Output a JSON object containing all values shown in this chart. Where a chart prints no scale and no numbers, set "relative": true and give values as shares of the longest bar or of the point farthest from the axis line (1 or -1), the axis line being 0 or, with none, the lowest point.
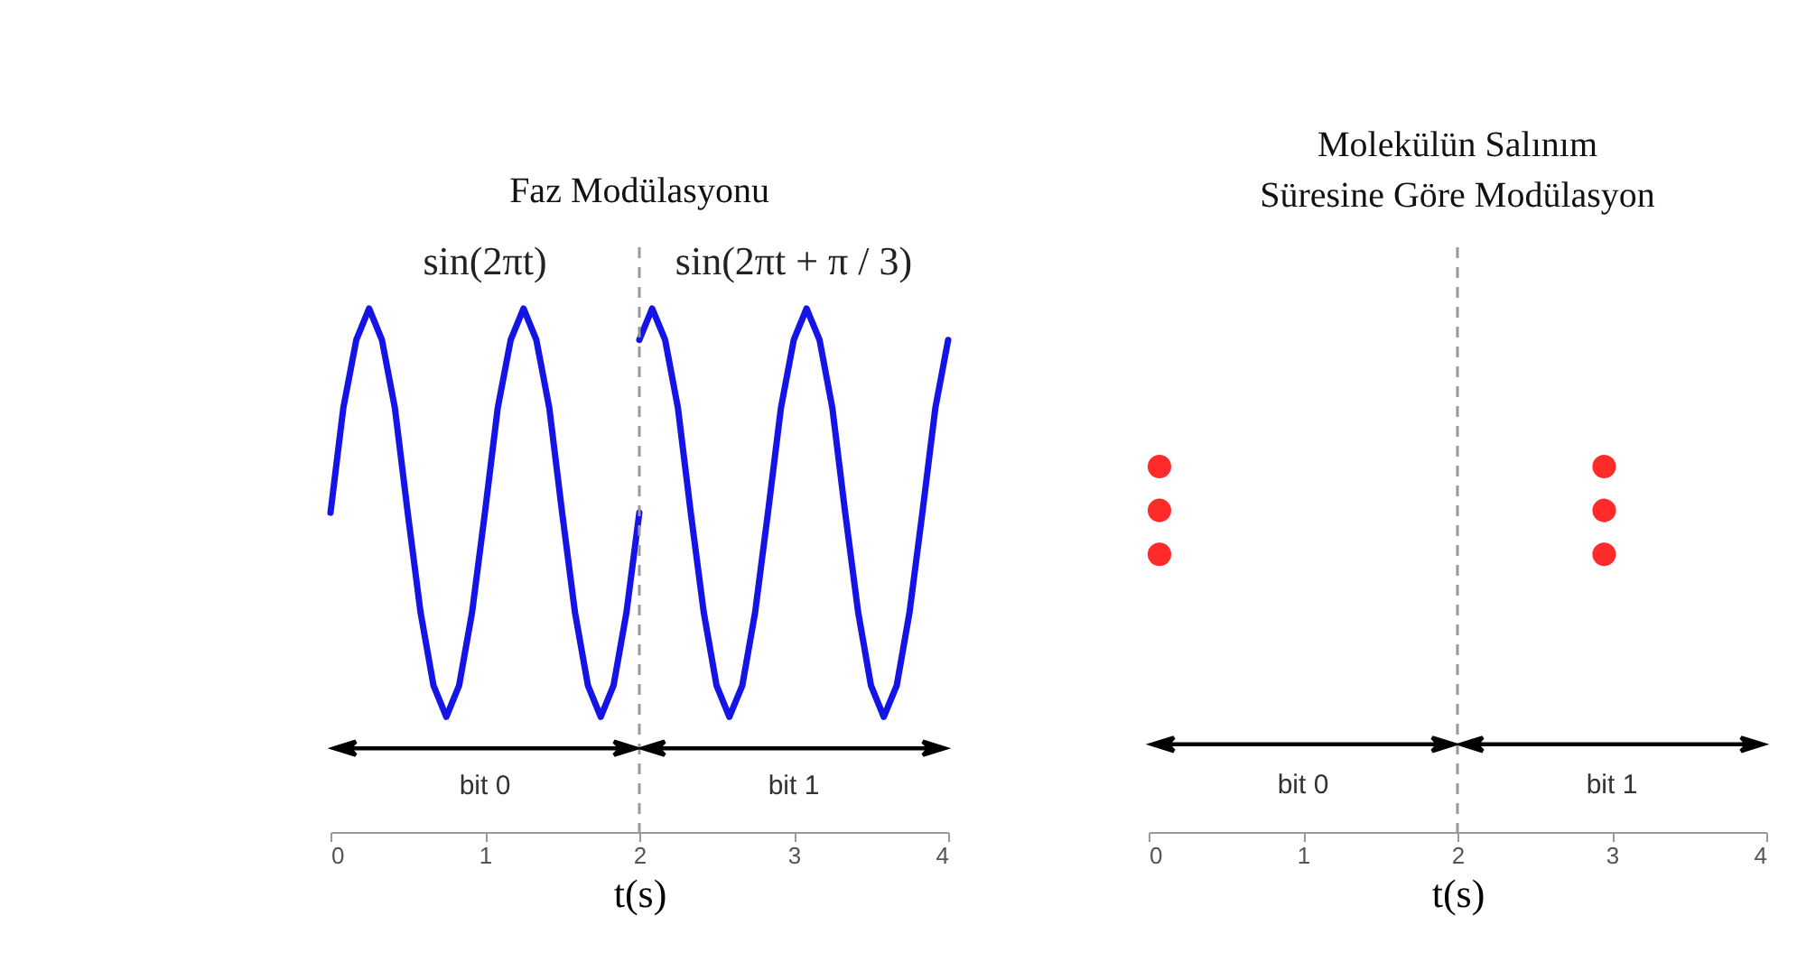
{
  "chart_data": [
    {
      "type": "line",
      "title": "Faz Modülasyonu",
      "xlabel": "t(s)",
      "xlim": [
        0,
        4
      ],
      "xticks": [
        0,
        1,
        2,
        3,
        4
      ],
      "relative": true,
      "tick_labels": "x",
      "line_style": "solid",
      "marker": "none",
      "series": [
        {
          "color": "#1414e6",
          "x": [
            0,
            0.083,
            0.167,
            0.25,
            0.333,
            0.417,
            0.5,
            0.583,
            0.667,
            0.75,
            0.833,
            0.917,
            1,
            1.083,
            1.167,
            1.25,
            1.333,
            1.417,
            1.5,
            1.583,
            1.667,
            1.75,
            1.833,
            1.917,
            2
          ],
          "values": [
            0.61,
            0.81,
            0.94,
            1,
            0.94,
            0.81,
            0.61,
            0.42,
            0.28,
            0.22,
            0.28,
            0.42,
            0.61,
            0.81,
            0.94,
            1,
            0.94,
            0.81,
            0.61,
            0.42,
            0.28,
            0.22,
            0.28,
            0.42,
            0.61
          ]
        },
        {
          "color": "#1414e6",
          "x": [
            2,
            2.083,
            2.167,
            2.25,
            2.333,
            2.417,
            2.5,
            2.583,
            2.667,
            2.75,
            2.833,
            2.917,
            3,
            3.083,
            3.167,
            3.25,
            3.333,
            3.417,
            3.5,
            3.583,
            3.667,
            3.75,
            3.833,
            3.917,
            4
          ],
          "values": [
            0.94,
            1,
            0.94,
            0.81,
            0.61,
            0.42,
            0.28,
            0.22,
            0.28,
            0.42,
            0.61,
            0.81,
            0.94,
            1,
            0.94,
            0.81,
            0.61,
            0.42,
            0.28,
            0.22,
            0.28,
            0.42,
            0.61,
            0.81,
            0.94
          ]
        }
      ],
      "ref_lines": [
        {
          "axis": "x",
          "value": 2,
          "color": "#999999",
          "line_style": "dashed"
        }
      ],
      "annotations": [
        "sin(2πt)",
        "sin(2πt + π / 3)",
        "bit 0",
        "bit 1"
      ]
    },
    {
      "type": "scatter",
      "title": "Molekülün Salınım Süresine Göre Modülasyon",
      "xlabel": "t(s)",
      "xlim": [
        0,
        4
      ],
      "xticks": [
        0,
        1,
        2,
        3,
        4
      ],
      "relative": true,
      "tick_labels": "x",
      "marker": "circle",
      "series": [
        {
          "color": "#ff2a2a",
          "x": [
            0.07,
            0.07,
            0.07,
            2.95,
            2.95,
            2.95
          ],
          "values": [
            1,
            0.88,
            0.76,
            1,
            0.88,
            0.76
          ]
        }
      ],
      "ref_lines": [
        {
          "axis": "x",
          "value": 2,
          "color": "#999999",
          "line_style": "dashed"
        }
      ],
      "annotations": [
        "bit 0",
        "bit 1"
      ]
    }
  ]
}
